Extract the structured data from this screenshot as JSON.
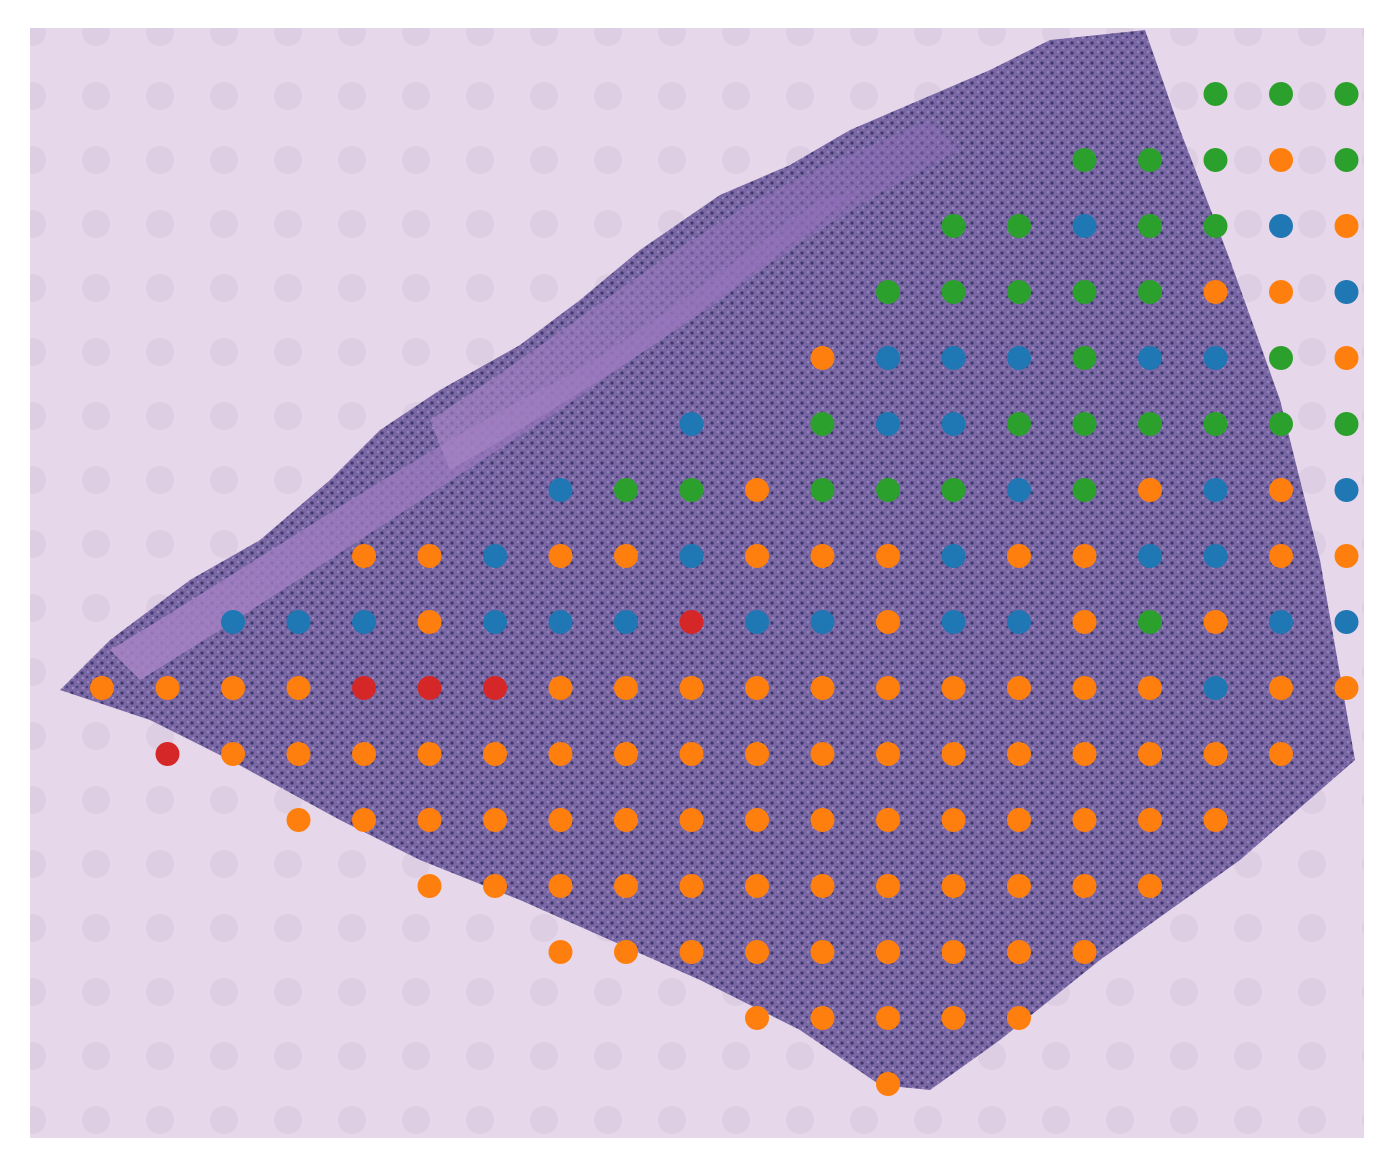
{
  "image": {
    "background_color": "#e5d6e8",
    "tissue_color_light": "#b49ac8",
    "tissue_color_dark": "#3d3570"
  },
  "palette": {
    "orange": "#ff7f0e",
    "blue": "#1f77b4",
    "green": "#2ca02c",
    "red": "#d62728"
  },
  "spot_grid": {
    "rows": [
      {
        "row": 1,
        "spots": [
          {
            "col": 18,
            "c": "green"
          },
          {
            "col": 19,
            "c": "green"
          },
          {
            "col": 20,
            "c": "green"
          },
          {
            "col": 21,
            "c": "red"
          }
        ]
      },
      {
        "row": 2,
        "spots": [
          {
            "col": 16,
            "c": "green"
          },
          {
            "col": 17,
            "c": "green"
          },
          {
            "col": 18,
            "c": "green"
          },
          {
            "col": 19,
            "c": "orange"
          },
          {
            "col": 20,
            "c": "green"
          },
          {
            "col": 21,
            "c": "green"
          }
        ]
      },
      {
        "row": 3,
        "spots": [
          {
            "col": 14,
            "c": "green"
          },
          {
            "col": 15,
            "c": "green"
          },
          {
            "col": 16,
            "c": "blue"
          },
          {
            "col": 17,
            "c": "green"
          },
          {
            "col": 18,
            "c": "green"
          },
          {
            "col": 19,
            "c": "blue"
          },
          {
            "col": 20,
            "c": "orange"
          },
          {
            "col": 21,
            "c": "orange"
          }
        ]
      },
      {
        "row": 4,
        "spots": [
          {
            "col": 13,
            "c": "green"
          },
          {
            "col": 14,
            "c": "green"
          },
          {
            "col": 15,
            "c": "green"
          },
          {
            "col": 16,
            "c": "green"
          },
          {
            "col": 17,
            "c": "green"
          },
          {
            "col": 18,
            "c": "orange"
          },
          {
            "col": 19,
            "c": "orange"
          },
          {
            "col": 20,
            "c": "blue"
          },
          {
            "col": 21,
            "c": "red"
          }
        ]
      },
      {
        "row": 5,
        "spots": [
          {
            "col": 12,
            "c": "orange"
          },
          {
            "col": 13,
            "c": "blue"
          },
          {
            "col": 14,
            "c": "blue"
          },
          {
            "col": 15,
            "c": "blue"
          },
          {
            "col": 16,
            "c": "green"
          },
          {
            "col": 17,
            "c": "blue"
          },
          {
            "col": 18,
            "c": "blue"
          },
          {
            "col": 19,
            "c": "green"
          },
          {
            "col": 20,
            "c": "orange"
          },
          {
            "col": 21,
            "c": "red"
          },
          {
            "col": 22,
            "c": "red"
          }
        ]
      },
      {
        "row": 6,
        "spots": [
          {
            "col": 10,
            "c": "blue"
          },
          {
            "col": 12,
            "c": "green"
          },
          {
            "col": 13,
            "c": "blue"
          },
          {
            "col": 14,
            "c": "blue"
          },
          {
            "col": 15,
            "c": "green"
          },
          {
            "col": 16,
            "c": "green"
          },
          {
            "col": 17,
            "c": "green"
          },
          {
            "col": 18,
            "c": "green"
          },
          {
            "col": 19,
            "c": "green"
          },
          {
            "col": 20,
            "c": "green"
          },
          {
            "col": 21,
            "c": "blue"
          },
          {
            "col": 22,
            "c": "blue"
          }
        ]
      },
      {
        "row": 7,
        "spots": [
          {
            "col": 8,
            "c": "blue"
          },
          {
            "col": 9,
            "c": "green"
          },
          {
            "col": 10,
            "c": "green"
          },
          {
            "col": 11,
            "c": "orange"
          },
          {
            "col": 12,
            "c": "green"
          },
          {
            "col": 13,
            "c": "green"
          },
          {
            "col": 14,
            "c": "green"
          },
          {
            "col": 15,
            "c": "blue"
          },
          {
            "col": 16,
            "c": "green"
          },
          {
            "col": 17,
            "c": "orange"
          },
          {
            "col": 18,
            "c": "blue"
          },
          {
            "col": 19,
            "c": "orange"
          },
          {
            "col": 20,
            "c": "blue"
          },
          {
            "col": 21,
            "c": "green"
          }
        ]
      },
      {
        "row": 8,
        "spots": [
          {
            "col": 5,
            "c": "orange"
          },
          {
            "col": 6,
            "c": "orange"
          },
          {
            "col": 7,
            "c": "blue"
          },
          {
            "col": 8,
            "c": "orange"
          },
          {
            "col": 9,
            "c": "orange"
          },
          {
            "col": 10,
            "c": "blue"
          },
          {
            "col": 11,
            "c": "orange"
          },
          {
            "col": 12,
            "c": "orange"
          },
          {
            "col": 13,
            "c": "orange"
          },
          {
            "col": 14,
            "c": "blue"
          },
          {
            "col": 15,
            "c": "orange"
          },
          {
            "col": 16,
            "c": "orange"
          },
          {
            "col": 17,
            "c": "blue"
          },
          {
            "col": 18,
            "c": "blue"
          },
          {
            "col": 19,
            "c": "orange"
          },
          {
            "col": 20,
            "c": "orange"
          }
        ]
      },
      {
        "row": 9,
        "spots": [
          {
            "col": 3,
            "c": "blue"
          },
          {
            "col": 4,
            "c": "blue"
          },
          {
            "col": 5,
            "c": "blue"
          },
          {
            "col": 6,
            "c": "orange"
          },
          {
            "col": 7,
            "c": "blue"
          },
          {
            "col": 8,
            "c": "blue"
          },
          {
            "col": 9,
            "c": "blue"
          },
          {
            "col": 10,
            "c": "red"
          },
          {
            "col": 11,
            "c": "blue"
          },
          {
            "col": 12,
            "c": "blue"
          },
          {
            "col": 13,
            "c": "orange"
          },
          {
            "col": 14,
            "c": "blue"
          },
          {
            "col": 15,
            "c": "blue"
          },
          {
            "col": 16,
            "c": "orange"
          },
          {
            "col": 17,
            "c": "green"
          },
          {
            "col": 18,
            "c": "orange"
          },
          {
            "col": 19,
            "c": "blue"
          },
          {
            "col": 20,
            "c": "blue"
          }
        ]
      },
      {
        "row": 10,
        "spots": [
          {
            "col": 1,
            "c": "orange"
          },
          {
            "col": 2,
            "c": "orange"
          },
          {
            "col": 3,
            "c": "orange"
          },
          {
            "col": 4,
            "c": "orange"
          },
          {
            "col": 5,
            "c": "red"
          },
          {
            "col": 6,
            "c": "red"
          },
          {
            "col": 7,
            "c": "red"
          },
          {
            "col": 8,
            "c": "orange"
          },
          {
            "col": 9,
            "c": "orange"
          },
          {
            "col": 10,
            "c": "orange"
          },
          {
            "col": 11,
            "c": "orange"
          },
          {
            "col": 12,
            "c": "orange"
          },
          {
            "col": 13,
            "c": "orange"
          },
          {
            "col": 14,
            "c": "orange"
          },
          {
            "col": 15,
            "c": "orange"
          },
          {
            "col": 16,
            "c": "orange"
          },
          {
            "col": 17,
            "c": "orange"
          },
          {
            "col": 18,
            "c": "blue"
          },
          {
            "col": 19,
            "c": "orange"
          },
          {
            "col": 20,
            "c": "orange"
          }
        ]
      },
      {
        "row": 11,
        "spots": [
          {
            "col": 2,
            "c": "red"
          },
          {
            "col": 3,
            "c": "orange"
          },
          {
            "col": 4,
            "c": "orange"
          },
          {
            "col": 5,
            "c": "orange"
          },
          {
            "col": 6,
            "c": "orange"
          },
          {
            "col": 7,
            "c": "orange"
          },
          {
            "col": 8,
            "c": "orange"
          },
          {
            "col": 9,
            "c": "orange"
          },
          {
            "col": 10,
            "c": "orange"
          },
          {
            "col": 11,
            "c": "orange"
          },
          {
            "col": 12,
            "c": "orange"
          },
          {
            "col": 13,
            "c": "orange"
          },
          {
            "col": 14,
            "c": "orange"
          },
          {
            "col": 15,
            "c": "orange"
          },
          {
            "col": 16,
            "c": "orange"
          },
          {
            "col": 17,
            "c": "orange"
          },
          {
            "col": 18,
            "c": "orange"
          },
          {
            "col": 19,
            "c": "orange"
          }
        ]
      },
      {
        "row": 12,
        "spots": [
          {
            "col": 4,
            "c": "orange"
          },
          {
            "col": 5,
            "c": "orange"
          },
          {
            "col": 6,
            "c": "orange"
          },
          {
            "col": 7,
            "c": "orange"
          },
          {
            "col": 8,
            "c": "orange"
          },
          {
            "col": 9,
            "c": "orange"
          },
          {
            "col": 10,
            "c": "orange"
          },
          {
            "col": 11,
            "c": "orange"
          },
          {
            "col": 12,
            "c": "orange"
          },
          {
            "col": 13,
            "c": "orange"
          },
          {
            "col": 14,
            "c": "orange"
          },
          {
            "col": 15,
            "c": "orange"
          },
          {
            "col": 16,
            "c": "orange"
          },
          {
            "col": 17,
            "c": "orange"
          },
          {
            "col": 18,
            "c": "orange"
          }
        ]
      },
      {
        "row": 13,
        "spots": [
          {
            "col": 6,
            "c": "orange"
          },
          {
            "col": 7,
            "c": "orange"
          },
          {
            "col": 8,
            "c": "orange"
          },
          {
            "col": 9,
            "c": "orange"
          },
          {
            "col": 10,
            "c": "orange"
          },
          {
            "col": 11,
            "c": "orange"
          },
          {
            "col": 12,
            "c": "orange"
          },
          {
            "col": 13,
            "c": "orange"
          },
          {
            "col": 14,
            "c": "orange"
          },
          {
            "col": 15,
            "c": "orange"
          },
          {
            "col": 16,
            "c": "orange"
          },
          {
            "col": 17,
            "c": "orange"
          }
        ]
      },
      {
        "row": 14,
        "spots": [
          {
            "col": 8,
            "c": "orange"
          },
          {
            "col": 9,
            "c": "orange"
          },
          {
            "col": 10,
            "c": "orange"
          },
          {
            "col": 11,
            "c": "orange"
          },
          {
            "col": 12,
            "c": "orange"
          },
          {
            "col": 13,
            "c": "orange"
          },
          {
            "col": 14,
            "c": "orange"
          },
          {
            "col": 15,
            "c": "orange"
          },
          {
            "col": 16,
            "c": "orange"
          }
        ]
      },
      {
        "row": 15,
        "spots": [
          {
            "col": 11,
            "c": "orange"
          },
          {
            "col": 12,
            "c": "orange"
          },
          {
            "col": 13,
            "c": "orange"
          },
          {
            "col": 14,
            "c": "orange"
          },
          {
            "col": 15,
            "c": "orange"
          }
        ]
      },
      {
        "row": 16,
        "spots": [
          {
            "col": 13,
            "c": "orange"
          }
        ]
      }
    ]
  }
}
